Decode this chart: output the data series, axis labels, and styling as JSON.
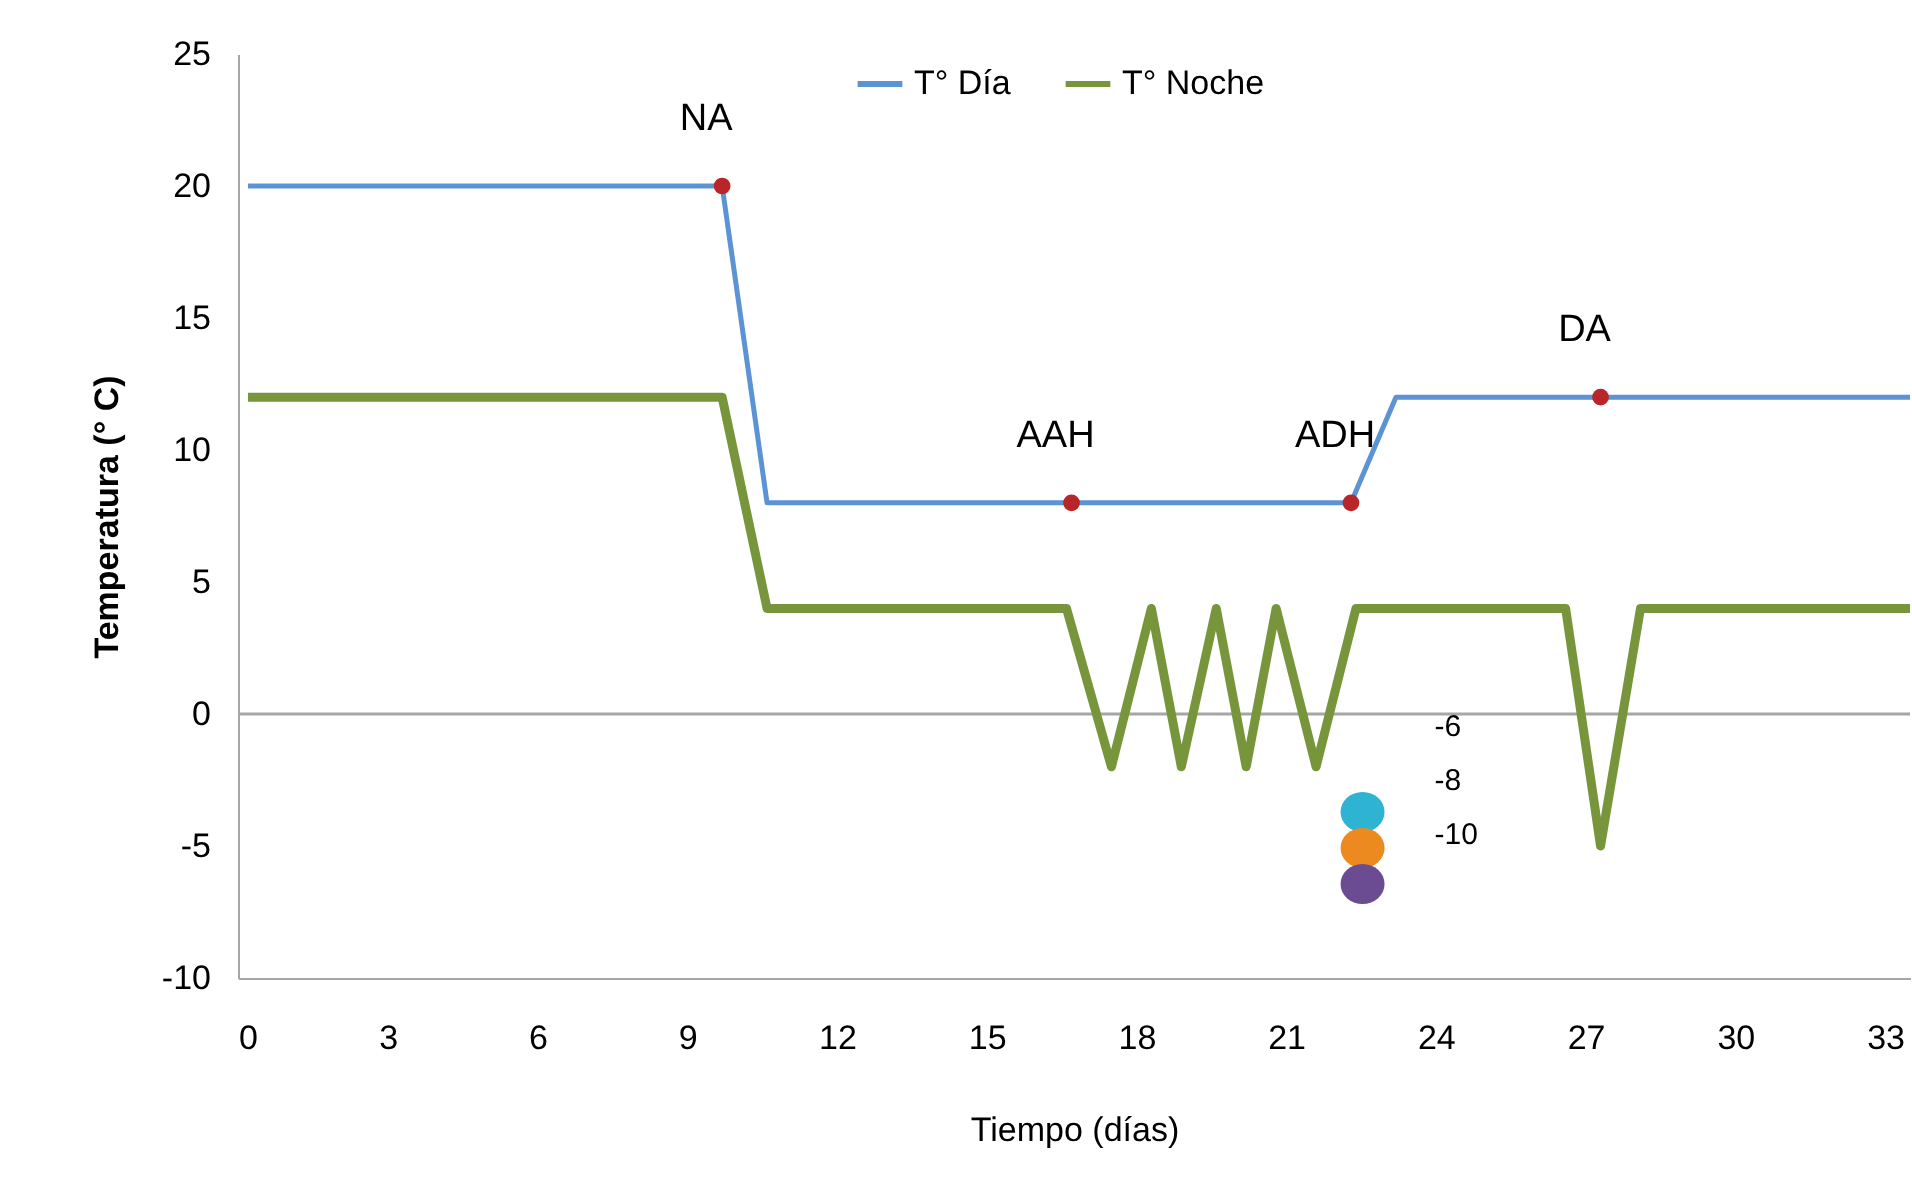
{
  "chart_data": {
    "type": "line",
    "ylabel": "Temperatura (° C)",
    "xlabel": "Tiempo (días)",
    "xlim": [
      0,
      33.5
    ],
    "xticks": [
      0,
      3,
      6,
      9,
      12,
      15,
      18,
      21,
      24,
      27,
      30,
      33
    ],
    "ylim": [
      -10,
      25
    ],
    "yticks": [
      -10,
      -5,
      0,
      5,
      10,
      15,
      20,
      25
    ],
    "series": [
      {
        "name": "T° Día",
        "color": "#5b93d5",
        "x": [
          0.2,
          9.7,
          10.6,
          22.3,
          23.2,
          33.5
        ],
        "values": [
          20,
          20,
          8,
          8,
          12,
          12
        ]
      },
      {
        "name": "T° Noche",
        "color": "#77963c",
        "x": [
          0.2,
          9.7,
          10.6,
          16.6,
          17.5,
          18.3,
          18.9,
          19.6,
          20.2,
          20.8,
          21.6,
          22.4,
          26.6,
          27.3,
          28.1,
          33.5
        ],
        "values": [
          12,
          12,
          4,
          4,
          -2,
          4,
          -2,
          4,
          -2,
          4,
          -2,
          4,
          4,
          -5,
          4,
          4
        ]
      },
      {
        "type": "scatter",
        "color": "#b8262a",
        "x": [
          9.7,
          16.7,
          22.3,
          27.3
        ],
        "values": [
          20,
          8,
          8,
          12
        ]
      }
    ],
    "annotations": [
      {
        "text": "NA",
        "x": 9.7,
        "y": 20
      },
      {
        "text": "AAH",
        "x": 16.7,
        "y": 8
      },
      {
        "text": "ADH",
        "x": 22.3,
        "y": 8
      },
      {
        "text": "DA",
        "x": 27.3,
        "y": 12
      },
      "-6",
      "-8",
      "-10"
    ],
    "ref_lines": [
      {
        "axis": "y",
        "value": 0,
        "color": "#a6a6a6"
      }
    ],
    "legend": "top",
    "grid": false,
    "line_style": "solid"
  }
}
